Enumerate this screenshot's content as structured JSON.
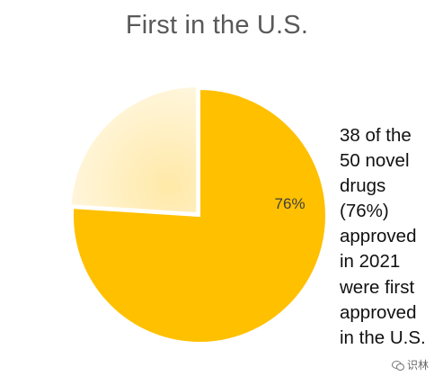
{
  "chart_data": {
    "type": "pie",
    "title": "First in the U.S.",
    "slices": [
      {
        "label": "76%",
        "value": 76,
        "color": "#FFC000"
      },
      {
        "label": "",
        "value": 24,
        "color": "#FFF2CC"
      }
    ]
  },
  "side_text_lines": [
    "38 of the",
    "50 novel",
    "drugs",
    "(76%)",
    "approved",
    "in 2021",
    "were first",
    "approved",
    "in the U.S."
  ],
  "watermark": {
    "text": "识林",
    "icon": "chat-bubble-icon"
  }
}
